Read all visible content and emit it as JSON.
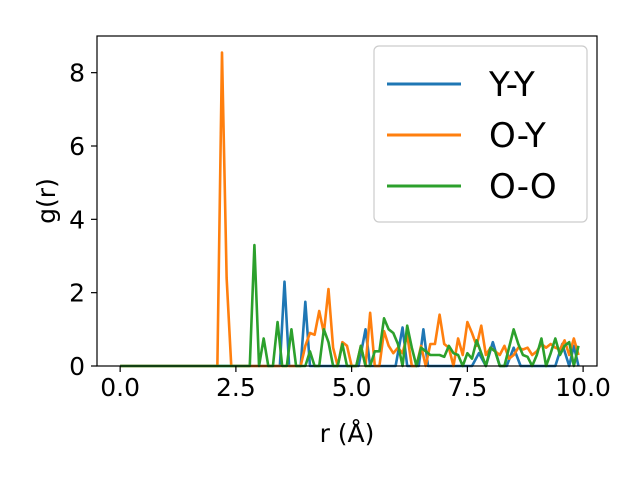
{
  "chart_data": {
    "type": "line",
    "title": "",
    "xlabel": "r (Å)",
    "ylabel": "g(r)",
    "xlim": [
      -0.5,
      10.3
    ],
    "ylim": [
      0,
      9.0
    ],
    "xticks": [
      0.0,
      2.5,
      5.0,
      7.5,
      10.0
    ],
    "xtick_labels": [
      "0.0",
      "2.5",
      "5.0",
      "7.5",
      "10.0"
    ],
    "yticks": [
      0,
      2,
      4,
      6,
      8
    ],
    "ytick_labels": [
      "0",
      "2",
      "4",
      "6",
      "8"
    ],
    "grid": false,
    "legend_position": "top-right",
    "series": [
      {
        "name": "Y-Y",
        "color": "#1f77b4",
        "x": [
          0.0,
          3.3,
          3.45,
          3.55,
          3.65,
          3.8,
          3.9,
          4.0,
          4.1,
          4.25,
          5.15,
          5.3,
          5.4,
          5.95,
          6.1,
          6.2,
          6.3,
          6.45,
          6.55,
          6.65,
          6.75,
          7.6,
          7.75,
          7.9,
          8.05,
          8.2,
          8.35,
          8.5,
          8.65,
          8.8,
          9.4,
          9.55,
          9.7,
          9.8,
          9.9
        ],
        "y": [
          0.0,
          0.0,
          0.0,
          2.3,
          0.0,
          0.0,
          0.0,
          1.75,
          0.0,
          0.0,
          0.0,
          1.0,
          0.0,
          0.0,
          1.05,
          0.0,
          0.0,
          0.0,
          1.0,
          0.0,
          0.0,
          0.0,
          0.35,
          0.0,
          0.65,
          0.0,
          0.0,
          0.5,
          0.0,
          0.0,
          0.0,
          0.6,
          0.0,
          0.55,
          0.0
        ]
      },
      {
        "name": "O-Y",
        "color": "#ff7f0e",
        "x": [
          0.0,
          2.1,
          2.2,
          2.3,
          2.4,
          3.9,
          4.0,
          4.1,
          4.2,
          4.3,
          4.4,
          4.5,
          4.6,
          4.7,
          4.8,
          4.9,
          5.0,
          5.1,
          5.2,
          5.3,
          5.4,
          5.5,
          5.6,
          5.7,
          5.8,
          5.9,
          6.0,
          6.1,
          6.2,
          6.3,
          6.4,
          6.5,
          6.6,
          6.7,
          6.8,
          6.9,
          7.0,
          7.1,
          7.2,
          7.3,
          7.4,
          7.5,
          7.6,
          7.7,
          7.8,
          7.9,
          8.0,
          8.1,
          8.2,
          8.3,
          8.4,
          8.5,
          8.6,
          8.7,
          8.8,
          8.9,
          9.0,
          9.1,
          9.2,
          9.3,
          9.4,
          9.5,
          9.6,
          9.7,
          9.8,
          9.9
        ],
        "y": [
          0.0,
          0.0,
          8.55,
          2.4,
          0.0,
          0.0,
          0.55,
          0.9,
          0.85,
          1.5,
          0.9,
          2.1,
          0.5,
          0.0,
          0.65,
          0.55,
          0.0,
          0.0,
          0.55,
          0.0,
          1.45,
          0.0,
          0.0,
          0.95,
          0.55,
          0.35,
          0.5,
          0.35,
          0.85,
          0.0,
          0.0,
          0.55,
          0.0,
          0.6,
          0.6,
          1.4,
          0.6,
          0.5,
          0.0,
          0.75,
          0.3,
          1.2,
          0.9,
          0.55,
          1.1,
          0.3,
          0.5,
          0.4,
          0.3,
          0.55,
          0.2,
          0.3,
          0.5,
          0.45,
          0.5,
          0.3,
          0.4,
          0.6,
          0.5,
          0.6,
          0.5,
          0.45,
          0.7,
          0.3,
          0.75,
          0.3
        ]
      },
      {
        "name": "O-O",
        "color": "#2ca02c",
        "x": [
          0.0,
          2.8,
          2.9,
          3.0,
          3.1,
          3.2,
          3.3,
          3.4,
          3.5,
          3.6,
          3.7,
          3.8,
          3.9,
          4.0,
          4.1,
          4.2,
          4.3,
          4.4,
          4.5,
          4.6,
          4.7,
          4.8,
          4.9,
          5.0,
          5.1,
          5.2,
          5.3,
          5.4,
          5.5,
          5.6,
          5.7,
          5.8,
          5.9,
          6.0,
          6.1,
          6.2,
          6.3,
          6.4,
          6.5,
          6.6,
          6.7,
          6.8,
          6.9,
          7.0,
          7.1,
          7.2,
          7.3,
          7.4,
          7.5,
          7.6,
          7.7,
          7.8,
          7.9,
          8.0,
          8.1,
          8.2,
          8.3,
          8.4,
          8.5,
          8.6,
          8.7,
          8.8,
          8.9,
          9.0,
          9.1,
          9.2,
          9.3,
          9.4,
          9.5,
          9.6,
          9.7,
          9.8,
          9.9
        ],
        "y": [
          0.0,
          0.0,
          3.3,
          0.0,
          0.75,
          0.0,
          0.0,
          1.2,
          0.0,
          0.0,
          1.0,
          0.0,
          0.0,
          0.0,
          0.4,
          0.0,
          0.0,
          1.0,
          0.65,
          0.0,
          0.0,
          0.6,
          0.0,
          0.0,
          0.0,
          0.55,
          0.0,
          0.0,
          0.4,
          0.4,
          1.3,
          1.0,
          0.9,
          0.6,
          0.0,
          1.1,
          0.5,
          0.0,
          0.5,
          0.4,
          0.3,
          0.3,
          0.3,
          0.25,
          0.55,
          0.35,
          0.3,
          0.0,
          0.35,
          0.2,
          0.7,
          0.35,
          0.0,
          0.5,
          0.4,
          0.0,
          0.0,
          0.5,
          1.0,
          0.6,
          0.3,
          0.25,
          0.0,
          0.3,
          0.75,
          0.0,
          0.35,
          0.75,
          0.3,
          0.55,
          0.65,
          0.0,
          0.55
        ]
      }
    ]
  }
}
